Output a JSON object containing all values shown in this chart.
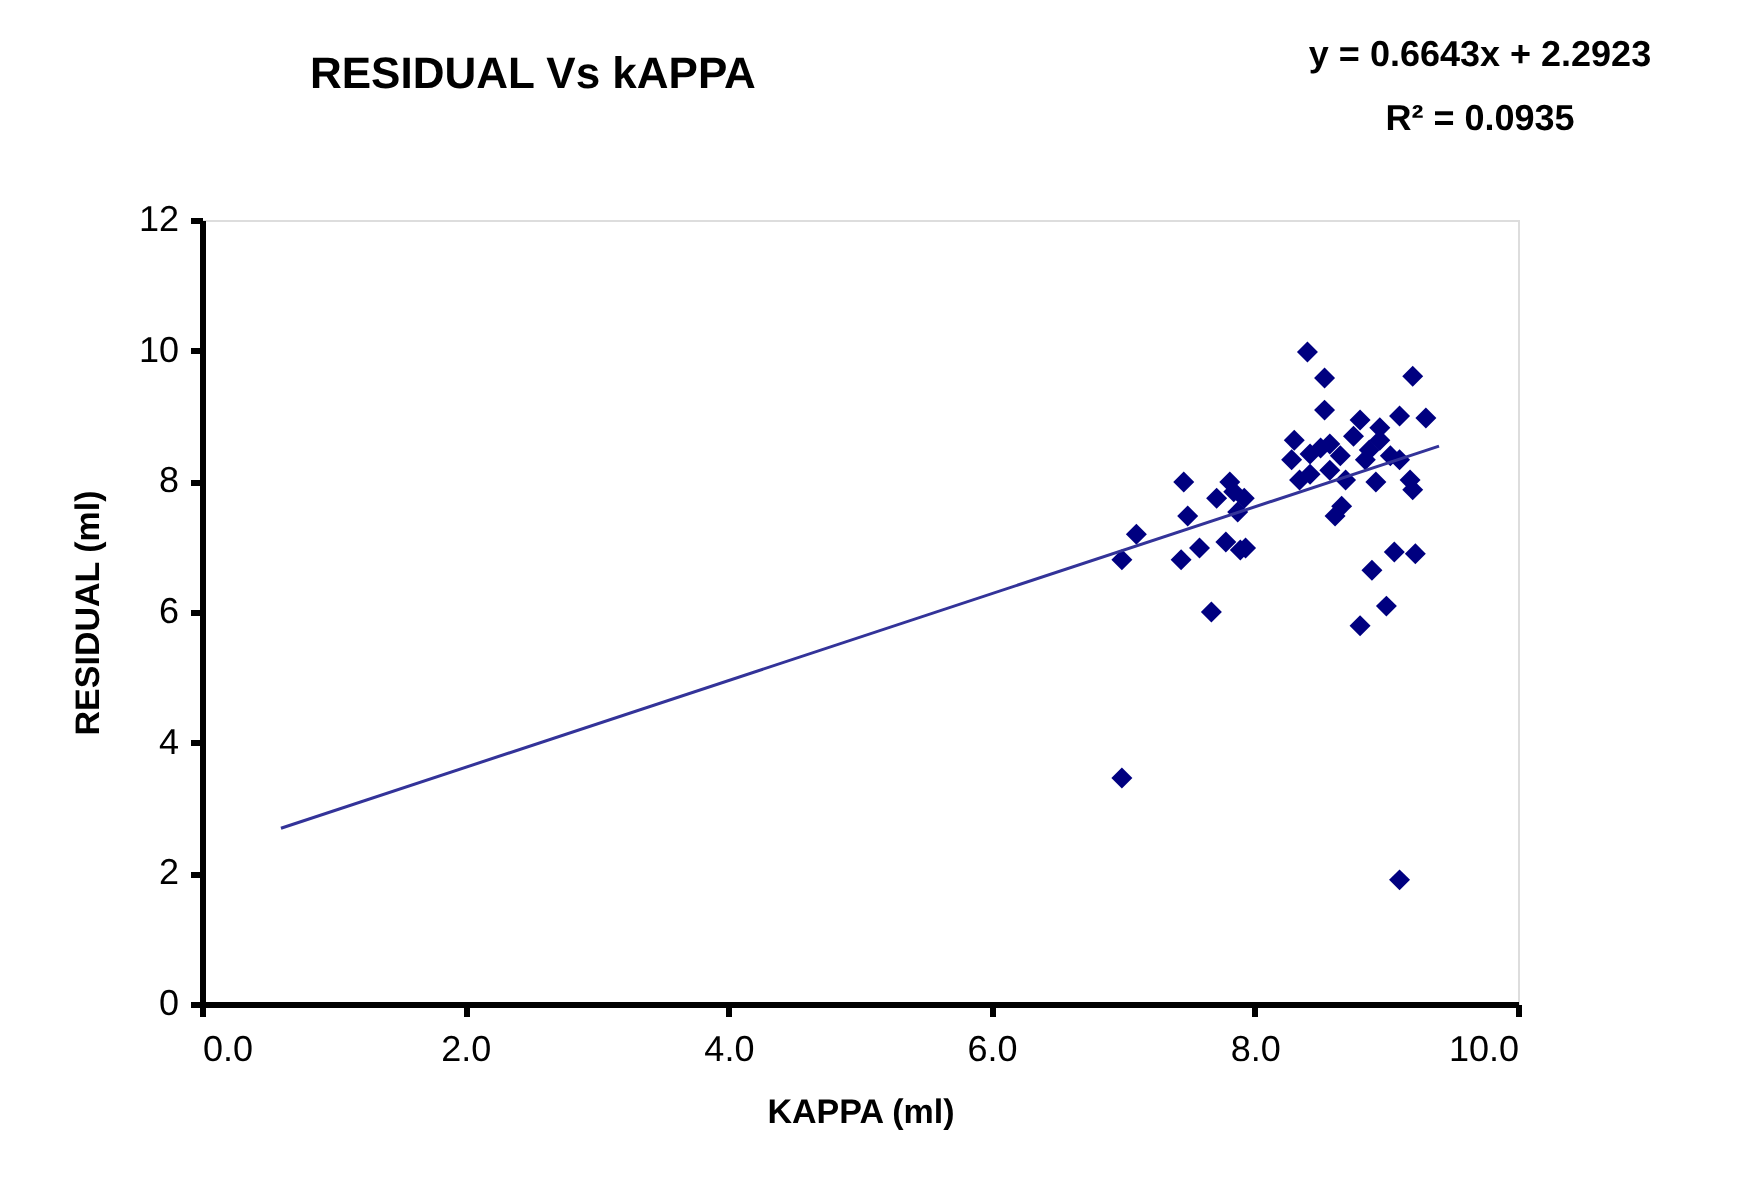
{
  "chart_data": {
    "type": "scatter",
    "title": "RESIDUAL  Vs kAPPA",
    "xlabel": "KAPPA (ml)",
    "ylabel": "RESIDUAL (ml)",
    "xlim": [
      0,
      10
    ],
    "xticks": [
      {
        "value": 0,
        "label": "0.0"
      },
      {
        "value": 2,
        "label": "2.0"
      },
      {
        "value": 4,
        "label": "4.0"
      },
      {
        "value": 6,
        "label": "6.0"
      },
      {
        "value": 8,
        "label": "8.0"
      },
      {
        "value": 10,
        "label": "10.0"
      }
    ],
    "ylim": [
      0,
      12
    ],
    "yticks": [
      0,
      2,
      4,
      6,
      8,
      10,
      12
    ],
    "grid": false,
    "marker": "diamond",
    "annotations": [
      "y = 0.6643x + 2.2923",
      "R² = 0.0935"
    ],
    "series": [
      {
        "color": "#000080",
        "x": [
          6.99,
          6.99,
          7.1,
          7.46,
          7.49,
          7.44,
          7.58,
          7.67,
          7.71,
          7.78,
          7.81,
          7.84,
          7.87,
          7.92,
          7.89,
          7.93,
          8.28,
          8.3,
          8.4,
          8.53,
          8.53,
          8.5,
          8.42,
          8.34,
          8.57,
          8.65,
          8.69,
          8.66,
          8.61,
          8.75,
          8.84,
          8.95,
          8.95,
          9.1,
          9.2,
          9.3,
          9.1,
          9.18,
          9.2,
          8.92,
          9.03,
          8.89,
          9.06,
          9.22,
          8.8,
          9.0,
          9.1,
          8.42,
          8.57,
          8.8,
          8.87
        ],
        "values": [
          3.46,
          6.8,
          7.19,
          7.99,
          7.47,
          6.8,
          6.98,
          6.0,
          7.74,
          7.07,
          7.99,
          7.84,
          7.53,
          7.74,
          6.95,
          6.98,
          8.33,
          8.63,
          9.98,
          9.09,
          9.58,
          8.51,
          8.11,
          8.02,
          8.17,
          8.39,
          8.02,
          7.62,
          7.47,
          8.69,
          8.33,
          8.82,
          8.63,
          9.0,
          9.61,
          8.97,
          8.33,
          8.02,
          7.87,
          7.99,
          8.39,
          6.64,
          6.92,
          6.89,
          5.79,
          6.09,
          1.9,
          8.42,
          8.57,
          8.94,
          8.48
        ]
      },
      {
        "type": "line",
        "color": "#333399",
        "line_style": "solid",
        "marker": "none",
        "x": [
          0.6,
          9.4
        ],
        "values": [
          2.69,
          8.54
        ]
      }
    ]
  }
}
